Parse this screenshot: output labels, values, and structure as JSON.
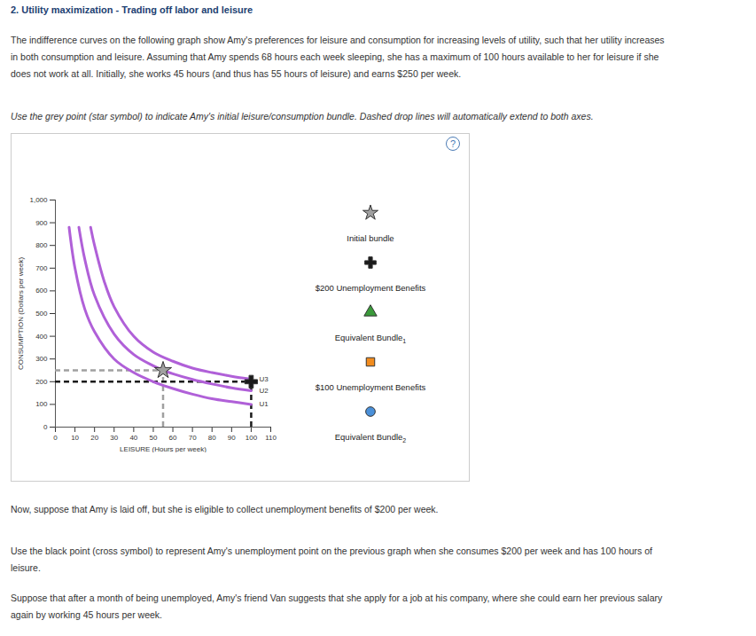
{
  "title": "2. Utility maximization - Trading off labor and leisure",
  "intro": "The indifference curves on the following graph show Amy's preferences for leisure and consumption for increasing levels of utility, such that her utility increases in both consumption and leisure. Assuming that Amy spends 68 hours each week sleeping, she has a maximum of 100 hours available to her for leisure if she does not work at all. Initially, she works 45 hours (and thus has 55 hours of leisure) and earns $250 per week.",
  "instruction": "Use the grey point (star symbol) to indicate Amy's initial leisure/consumption bundle. Dashed drop lines will automatically extend to both axes.",
  "help": "?",
  "chart_data": {
    "type": "line",
    "xlabel": "LEISURE (Hours per week)",
    "ylabel": "CONSUMPTION (Dollars per week)",
    "xlim": [
      0,
      110
    ],
    "xticks": [
      0,
      10,
      20,
      30,
      40,
      50,
      60,
      70,
      80,
      90,
      100,
      110
    ],
    "ylim": [
      0,
      1000
    ],
    "yticks": [
      0,
      100,
      200,
      300,
      400,
      500,
      600,
      700,
      800,
      900,
      1000
    ],
    "series": [
      {
        "name": "U1",
        "color": "#b060d8",
        "x": [
          7,
          10,
          15,
          20,
          30,
          40,
          50,
          60,
          70,
          80,
          90,
          100
        ],
        "values": [
          880,
          700,
          520,
          420,
          300,
          240,
          200,
          170,
          145,
          125,
          112,
          100
        ]
      },
      {
        "name": "U2",
        "color": "#b060d8",
        "x": [
          12,
          15,
          20,
          30,
          40,
          50,
          55,
          60,
          70,
          80,
          90,
          100
        ],
        "values": [
          880,
          740,
          580,
          410,
          320,
          270,
          250,
          235,
          210,
          190,
          173,
          160
        ]
      },
      {
        "name": "U3",
        "color": "#b060d8",
        "x": [
          18,
          20,
          25,
          30,
          40,
          50,
          60,
          70,
          80,
          90,
          100
        ],
        "values": [
          880,
          800,
          640,
          530,
          400,
          330,
          290,
          260,
          240,
          224,
          211
        ]
      }
    ],
    "palette": [
      {
        "label": "Initial bundle",
        "marker": "star",
        "color": "#a0a0a0",
        "x": 55,
        "y": 250
      },
      {
        "label": "$200 Unemployment Benefits",
        "marker": "cross",
        "color": "#1a1a1a",
        "x": 100,
        "y": 200
      },
      {
        "label": "Equivalent Bundle",
        "sub": "1",
        "marker": "triangle",
        "color": "#3a9a3a"
      },
      {
        "label": "$100 Unemployment Benefits",
        "marker": "square",
        "color": "#f28c1e"
      },
      {
        "label": "Equivalent Bundle",
        "sub": "2",
        "marker": "circle",
        "color": "#4a90d9"
      }
    ]
  },
  "paragraphs": [
    "Now, suppose that Amy is laid off, but she is eligible to collect unemployment benefits of $200 per week.",
    "Use the black point (cross symbol) to represent Amy's unemployment point on the previous graph when she consumes $200 per week and has 100 hours of leisure.",
    "Suppose that after a month of being unemployed, Amy's friend Van suggests that she apply for a job at his company, where she could earn her previous salary again by working 45 hours per week."
  ]
}
